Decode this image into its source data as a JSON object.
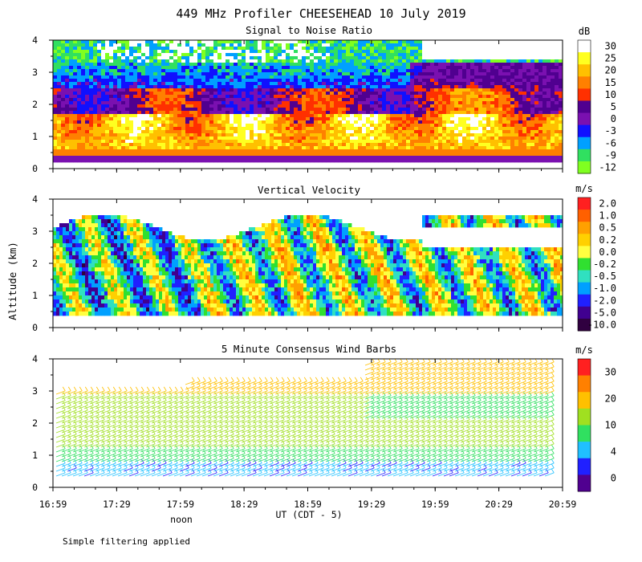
{
  "figure": {
    "title": "449 MHz Profiler CHEESEHEAD 10 July 2019",
    "ylabel": "Altitude (km)",
    "xlabel": "UT  (CDT - 5)",
    "noon_label": "noon",
    "footnote": "Simple filtering applied"
  },
  "chart_data": [
    {
      "type": "heatmap",
      "title": "Signal to Noise Ratio",
      "xlabel": "UT  (CDT - 5)",
      "ylabel": "Altitude (km)",
      "x_ticks": [
        "16:59",
        "17:29",
        "17:59",
        "18:29",
        "18:59",
        "19:29",
        "19:59",
        "20:29",
        "20:59"
      ],
      "y_ticks": [
        "0",
        "1",
        "2",
        "3",
        "4"
      ],
      "ylim": [
        0,
        4
      ],
      "colorbar": {
        "units": "dB",
        "labels": [
          "30",
          "25",
          "20",
          "15",
          "10",
          "5",
          "0",
          "-3",
          "-6",
          "-9",
          "-12"
        ],
        "colors": [
          "#ffffff",
          "#ffff20",
          "#ffc000",
          "#ff8000",
          "#ff3000",
          "#500090",
          "#7a10b0",
          "#1010ff",
          "#00a0ff",
          "#30e060",
          "#80ff20"
        ]
      }
    },
    {
      "type": "heatmap",
      "title": "Vertical Velocity",
      "ylabel": "Altitude (km)",
      "x_ticks": [
        "16:59",
        "17:29",
        "17:59",
        "18:29",
        "18:59",
        "19:29",
        "19:59",
        "20:29",
        "20:59"
      ],
      "y_ticks": [
        "0",
        "1",
        "2",
        "3",
        "4"
      ],
      "ylim": [
        0,
        4
      ],
      "colorbar": {
        "units": "m/s",
        "labels": [
          "2.0",
          "1.0",
          "0.5",
          "0.2",
          "0.0",
          "-0.2",
          "-0.5",
          "-1.0",
          "-2.0",
          "-5.0",
          "-10.0"
        ],
        "colors": [
          "#ff2020",
          "#ff6000",
          "#ffa000",
          "#ffd000",
          "#ffff40",
          "#30e030",
          "#30e0c0",
          "#00a0ff",
          "#2020ff",
          "#400090",
          "#300040"
        ]
      }
    },
    {
      "type": "scatter",
      "subtype": "wind-barbs",
      "title": "5 Minute Consensus Wind Barbs",
      "ylabel": "Altitude (km)",
      "x_ticks": [
        "16:59",
        "17:29",
        "17:59",
        "18:29",
        "18:59",
        "19:29",
        "19:59",
        "20:29",
        "20:59"
      ],
      "y_ticks": [
        "0",
        "1",
        "2",
        "3",
        "4"
      ],
      "ylim": [
        0,
        4
      ],
      "colorbar": {
        "units": "m/s",
        "labels": [
          "30",
          "20",
          "10",
          "4",
          "0"
        ],
        "colors": [
          "#ff2020",
          "#ff8000",
          "#ffc000",
          "#a0e020",
          "#30e060",
          "#20c0ff",
          "#2020ff",
          "#500090"
        ]
      }
    }
  ]
}
